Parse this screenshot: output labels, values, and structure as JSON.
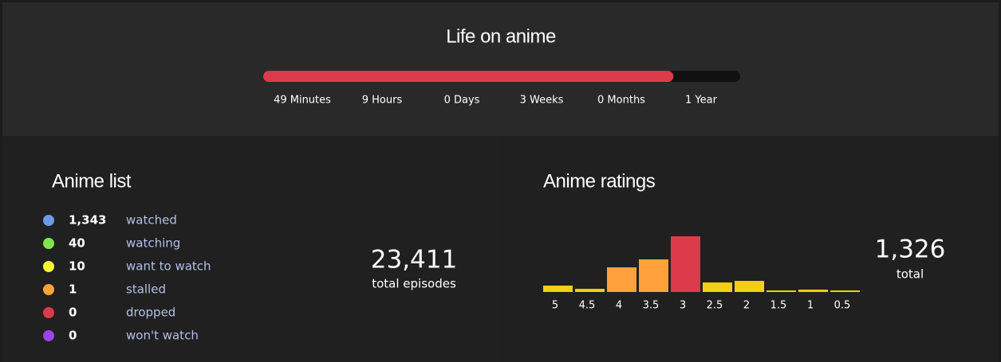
{
  "header": {
    "title": "Life on anime",
    "progress": 86,
    "progress_color": "#dc3b4a",
    "scale_labels": [
      "49 Minutes",
      "9 Hours",
      "0 Days",
      "3 Weeks",
      "0 Months",
      "1 Year"
    ]
  },
  "list": {
    "title": "Anime list",
    "items": [
      {
        "count": "1,343",
        "label": "watched",
        "color": "#6b9be6"
      },
      {
        "count": "40",
        "label": "watching",
        "color": "#7ee64a"
      },
      {
        "count": "10",
        "label": "want to watch",
        "color": "#f5f53a"
      },
      {
        "count": "1",
        "label": "stalled",
        "color": "#ffa43d"
      },
      {
        "count": "0",
        "label": "dropped",
        "color": "#dc3b4a"
      },
      {
        "count": "0",
        "label": "won't watch",
        "color": "#9a45e8"
      }
    ],
    "total": "23,411",
    "total_label": "total episodes"
  },
  "ratings": {
    "title": "Anime ratings",
    "type": "bar",
    "categories": [
      "5",
      "4.5",
      "4",
      "3.5",
      "3",
      "2.5",
      "2",
      "1.5",
      "1",
      "0.5"
    ],
    "values": [
      57,
      28,
      220,
      291,
      497,
      85,
      99,
      14,
      21,
      14
    ],
    "colors": [
      "#f2cf12",
      "#f2cf12",
      "#ffa03c",
      "#ffa03c",
      "#dc3b4a",
      "#f2cf12",
      "#f2cf12",
      "#f2cf12",
      "#f2cf12",
      "#f2cf12"
    ],
    "total": "1,326",
    "total_label": "total"
  }
}
